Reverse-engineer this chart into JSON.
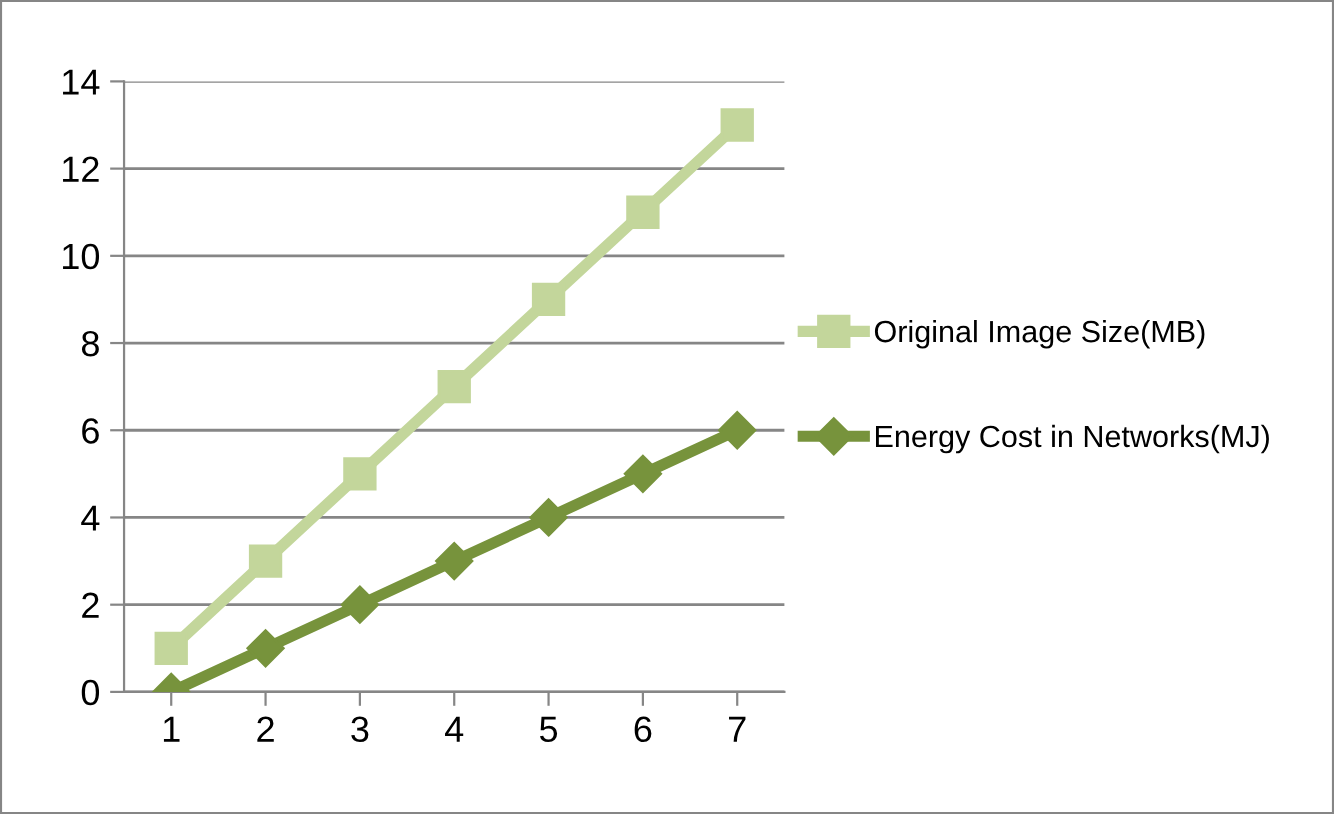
{
  "chart_data": {
    "type": "line",
    "categories": [
      "1",
      "2",
      "3",
      "4",
      "5",
      "6",
      "7"
    ],
    "series": [
      {
        "name": "Original Image Size(MB)",
        "color": "#c3d69b",
        "marker": "square",
        "values": [
          1,
          3,
          5,
          7,
          9,
          11,
          13
        ]
      },
      {
        "name": "Energy Cost in Networks(MJ)",
        "color": "#77933c",
        "marker": "diamond",
        "values": [
          0,
          1,
          2,
          3,
          4,
          5,
          6
        ]
      }
    ],
    "ylim": [
      0,
      14
    ],
    "yticks": [
      0,
      2,
      4,
      6,
      8,
      10,
      12,
      14
    ],
    "grid": "y",
    "legend": "right",
    "line_style": "solid"
  }
}
